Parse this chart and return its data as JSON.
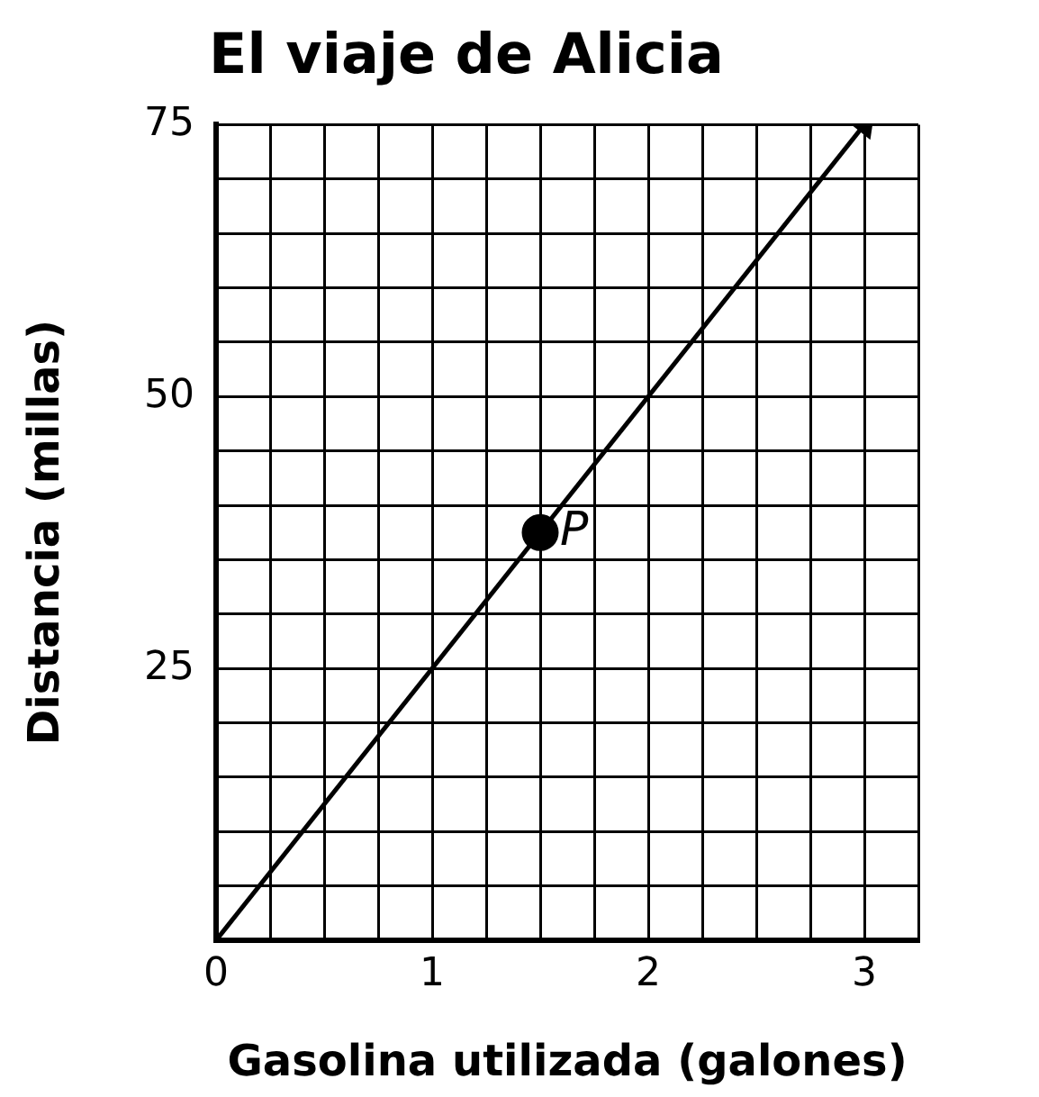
{
  "chart_data": {
    "type": "line",
    "title": "El viaje de Alicia",
    "xlabel": "Gasolina utilizada (galones)",
    "ylabel": "Distancia (millas)",
    "series": [
      {
        "type": "line",
        "x": [
          0,
          3
        ],
        "values": [
          0,
          75
        ],
        "color": "#000000"
      },
      {
        "type": "scatter",
        "x": [
          1.5
        ],
        "values": [
          37.5
        ],
        "color": "#000000",
        "marker": "circle"
      }
    ],
    "annotations": [
      {
        "text": "P",
        "x": 1.5,
        "y": 37.5
      }
    ],
    "xlim": [
      0,
      3.25
    ],
    "xticks": [
      0,
      {
        "value": 0.25,
        "label": null
      },
      {
        "value": 0.5,
        "label": null
      },
      {
        "value": 0.75,
        "label": null
      },
      1,
      {
        "value": 1.25,
        "label": null
      },
      {
        "value": 1.5,
        "label": null
      },
      {
        "value": 1.75,
        "label": null
      },
      2,
      {
        "value": 2.25,
        "label": null
      },
      {
        "value": 2.5,
        "label": null
      },
      {
        "value": 2.75,
        "label": null
      },
      3,
      {
        "value": 3.25,
        "label": null
      }
    ],
    "ylim": [
      0,
      75
    ],
    "yticks": [
      {
        "value": 0,
        "label": null
      },
      {
        "value": 5,
        "label": null
      },
      {
        "value": 10,
        "label": null
      },
      {
        "value": 15,
        "label": null
      },
      {
        "value": 20,
        "label": null
      },
      25,
      {
        "value": 30,
        "label": null
      },
      {
        "value": 35,
        "label": null
      },
      {
        "value": 40,
        "label": null
      },
      {
        "value": 45,
        "label": null
      },
      50,
      {
        "value": 55,
        "label": null
      },
      {
        "value": 60,
        "label": null
      },
      {
        "value": 65,
        "label": null
      },
      {
        "value": 70,
        "label": null
      },
      75
    ],
    "grid": true,
    "legend": false
  }
}
